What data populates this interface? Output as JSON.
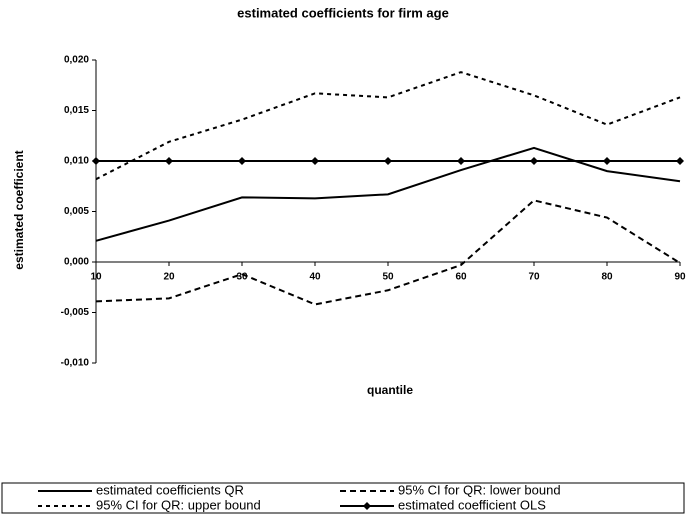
{
  "chart_data": {
    "type": "line",
    "title": "estimated coefficients for firm age",
    "xlabel": "quantile",
    "ylabel": "estimated coefficient",
    "x": [
      10,
      20,
      30,
      40,
      50,
      60,
      70,
      80,
      90
    ],
    "xlim": [
      10,
      90
    ],
    "xticks": [
      10,
      20,
      30,
      40,
      50,
      60,
      70,
      80,
      90
    ],
    "ylim": [
      -0.01,
      0.02
    ],
    "yticks": [
      {
        "value": -0.01,
        "label": "-0,010"
      },
      {
        "value": -0.005,
        "label": "-0,005"
      },
      {
        "value": 0,
        "label": "0,000"
      },
      {
        "value": 0.005,
        "label": "0,005"
      },
      {
        "value": 0.01,
        "label": "0,010"
      },
      {
        "value": 0.015,
        "label": "0,015"
      },
      {
        "value": 0.02,
        "label": "0,020"
      }
    ],
    "legend": "bottom",
    "series": [
      {
        "name": "estimated coefficients QR",
        "color": "#000000",
        "linestyle": "solid",
        "values": [
          0.0021,
          0.0041,
          0.0064,
          0.0063,
          0.0067,
          0.0091,
          0.0113,
          0.009,
          0.008
        ]
      },
      {
        "name": "95% CI for QR: lower bound",
        "color": "#000000",
        "linestyle": "dashed",
        "values": [
          -0.0039,
          -0.0036,
          -0.0012,
          -0.0042,
          -0.0028,
          -0.0003,
          0.0061,
          0.0044,
          -0.0001
        ]
      },
      {
        "name": "95% CI for QR: upper bound",
        "color": "#000000",
        "linestyle": "dotted",
        "values": [
          0.0082,
          0.0119,
          0.0141,
          0.0167,
          0.0163,
          0.0188,
          0.0165,
          0.0136,
          0.0163
        ]
      },
      {
        "name": "estimated coefficient OLS",
        "color": "#000000",
        "linestyle": "solid",
        "marker": "diamond",
        "values": [
          0.01,
          0.01,
          0.01,
          0.01,
          0.01,
          0.01,
          0.01,
          0.01,
          0.01
        ]
      }
    ]
  }
}
